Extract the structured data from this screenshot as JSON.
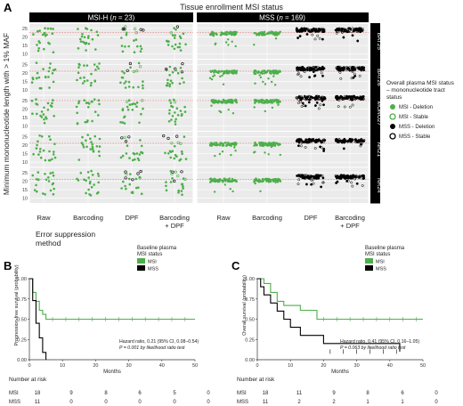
{
  "panel_a": {
    "label": "A",
    "top_title": "Tissue enrollment MSI status",
    "strip_left": "MSI-H (",
    "strip_left_n": "n",
    "strip_left_tail": " = 23)",
    "strip_right": "MSS (",
    "strip_right_n": "n",
    "strip_right_tail": " = 169)",
    "ylabel": "Minimum mononucleotide length with > 1% MAF",
    "xlabel_line1": "Error suppression",
    "xlabel_line2": "method",
    "facets": [
      "BAT25",
      "BAT26",
      "MONO27",
      "NR21",
      "NR24"
    ],
    "x_categories_left": [
      "Raw",
      "Barcoding",
      "DPF",
      "Barcoding",
      "+ DPF"
    ],
    "x_categories_right": [
      "Raw",
      "Barcoding",
      "DPF",
      "Barcoding",
      "+ DPF"
    ],
    "yticks": [
      "25",
      "20",
      "15",
      "10"
    ],
    "legend_title_1": "Overall plasma MSI status",
    "legend_title_2": "– mononucleotide tract",
    "legend_title_3": "status",
    "legend": [
      "MSI - Deletion",
      "MSI - Stable",
      "MSS - Deletion",
      "MSS - Stable"
    ],
    "colors": {
      "msi": "#4daf4a",
      "mss": "#000000",
      "ref_line": "#e8a0a0"
    }
  },
  "panel_b": {
    "label": "B",
    "ylabel": "Progression-free survival (probability)",
    "xlabel": "Months",
    "yticks": [
      "1.00",
      "0.75",
      "0.50",
      "0.25",
      "0.00"
    ],
    "xticks": [
      "0",
      "10",
      "20",
      "30",
      "40",
      "50"
    ],
    "legend_title_1": "Baseline plasma",
    "legend_title_2": "MSI status",
    "legend": [
      "MSI",
      "MSS"
    ],
    "annotation_1": "Hazard ratio, 0.21 (95% CI, 0.08–0.54)",
    "annotation_2": "P = 0.001 by likelihood ratio test",
    "risk_title": "Number at risk",
    "risk_rows": [
      {
        "label": "MSI",
        "values": [
          "18",
          "9",
          "8",
          "6",
          "5",
          "0"
        ]
      },
      {
        "label": "MSS",
        "values": [
          "11",
          "0",
          "0",
          "0",
          "0",
          "0"
        ]
      }
    ]
  },
  "panel_c": {
    "label": "C",
    "ylabel": "Overall survival (probability)",
    "xlabel": "Months",
    "yticks": [
      "1.00",
      "0.75",
      "0.50",
      "0.25",
      "0.00"
    ],
    "xticks": [
      "0",
      "10",
      "20",
      "30",
      "40",
      "50"
    ],
    "legend_title_1": "Baseline plasma",
    "legend_title_2": "MSI status",
    "legend": [
      "MSI",
      "MSS"
    ],
    "annotation_1": "Hazard ratio, 0.41 (95% CI, 0.16–1.05)",
    "annotation_2": "P = 0.063 by likelihood ratio test",
    "risk_title": "Number at risk",
    "risk_rows": [
      {
        "label": "MSI",
        "values": [
          "18",
          "11",
          "9",
          "8",
          "6",
          "0"
        ]
      },
      {
        "label": "MSS",
        "values": [
          "11",
          "2",
          "2",
          "1",
          "1",
          "0"
        ]
      }
    ]
  },
  "chart_data": [
    {
      "type": "line",
      "panel": "B",
      "xlim": [
        0,
        50
      ],
      "ylim": [
        0,
        1
      ],
      "series": [
        {
          "name": "MSI",
          "x": [
            0,
            1,
            2,
            3,
            4,
            5,
            50
          ],
          "y": [
            1.0,
            0.83,
            0.72,
            0.61,
            0.56,
            0.5,
            0.5
          ]
        },
        {
          "name": "MSS",
          "x": [
            0,
            1,
            2,
            3,
            4,
            5
          ],
          "y": [
            1.0,
            0.73,
            0.45,
            0.27,
            0.09,
            0.0
          ]
        }
      ]
    },
    {
      "type": "line",
      "panel": "C",
      "xlim": [
        0,
        50
      ],
      "ylim": [
        0,
        1
      ],
      "series": [
        {
          "name": "MSI",
          "x": [
            0,
            2,
            4,
            6,
            8,
            13,
            18,
            50
          ],
          "y": [
            1.0,
            0.94,
            0.83,
            0.72,
            0.67,
            0.61,
            0.5,
            0.5
          ]
        },
        {
          "name": "MSS",
          "x": [
            0,
            1,
            2,
            4,
            6,
            8,
            10,
            13,
            20,
            43
          ],
          "y": [
            1.0,
            0.9,
            0.8,
            0.7,
            0.6,
            0.5,
            0.4,
            0.3,
            0.2,
            0.1
          ]
        }
      ]
    }
  ]
}
